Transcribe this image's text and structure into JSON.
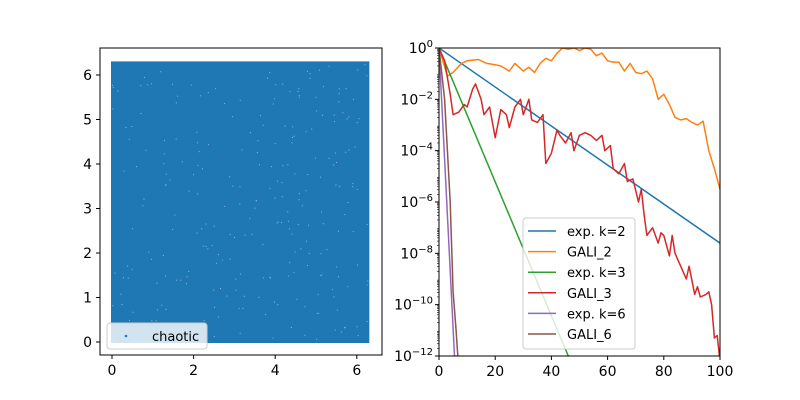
{
  "chart_data": [
    {
      "type": "scatter",
      "title": "",
      "xlabel": "",
      "ylabel": "",
      "xlim": [
        -0.31,
        6.6
      ],
      "ylim": [
        -0.31,
        6.6
      ],
      "xticks": [
        "0",
        "2",
        "4",
        "6"
      ],
      "yticks": [
        "0",
        "1",
        "2",
        "3",
        "4",
        "5",
        "6"
      ],
      "series": [
        {
          "name": "chaotic",
          "color": "#1f77b4",
          "x_range": [
            0,
            6.283
          ],
          "y_range": [
            0,
            6.283
          ],
          "note_density": "dense uniform fill"
        }
      ],
      "legend_position": "lower left",
      "grid": false
    },
    {
      "type": "line",
      "title": "",
      "xlabel": "",
      "ylabel": "",
      "xlim": [
        0,
        100
      ],
      "ylim": [
        1e-12,
        1
      ],
      "yscale": "log",
      "xticks": [
        "0",
        "20",
        "40",
        "60",
        "80",
        "100"
      ],
      "yticks": [
        "10^0",
        "10^-2",
        "10^-4",
        "10^-6",
        "10^-8",
        "10^-10",
        "10^-12"
      ],
      "legend_position": "lower center",
      "grid": false,
      "series": [
        {
          "name": "exp. k=2",
          "color": "#1f77b4",
          "log10_points": [
            [
              0,
              0
            ],
            [
              100,
              -7.6
            ]
          ]
        },
        {
          "name": "GALI_2",
          "color": "#ff7f0e",
          "log10_points": [
            [
              0,
              0
            ],
            [
              3,
              -1.1
            ],
            [
              5,
              -0.95
            ],
            [
              8,
              -0.6
            ],
            [
              10,
              -0.5
            ],
            [
              14,
              -0.45
            ],
            [
              17,
              -0.6
            ],
            [
              20,
              -0.65
            ],
            [
              22,
              -0.7
            ],
            [
              25,
              -0.9
            ],
            [
              27,
              -0.6
            ],
            [
              30,
              -0.9
            ],
            [
              32,
              -0.75
            ],
            [
              34,
              -0.95
            ],
            [
              36,
              -0.6
            ],
            [
              38,
              -0.4
            ],
            [
              40,
              -0.5
            ],
            [
              42,
              -0.2
            ],
            [
              44,
              0
            ],
            [
              46,
              -0.05
            ],
            [
              48,
              0
            ],
            [
              50,
              -0.1
            ],
            [
              52,
              0
            ],
            [
              54,
              -0.05
            ],
            [
              56,
              -0.3
            ],
            [
              58,
              -0.2
            ],
            [
              60,
              -0.5
            ],
            [
              62,
              -0.55
            ],
            [
              64,
              -0.55
            ],
            [
              66,
              -0.9
            ],
            [
              68,
              -0.6
            ],
            [
              70,
              -0.95
            ],
            [
              72,
              -1.0
            ],
            [
              74,
              -0.9
            ],
            [
              76,
              -1.2
            ],
            [
              78,
              -2.0
            ],
            [
              80,
              -1.8
            ],
            [
              82,
              -2.2
            ],
            [
              84,
              -2.7
            ],
            [
              86,
              -2.8
            ],
            [
              88,
              -2.75
            ],
            [
              90,
              -2.9
            ],
            [
              92,
              -3.0
            ],
            [
              94,
              -2.85
            ],
            [
              96,
              -4.0
            ],
            [
              98,
              -4.7
            ],
            [
              100,
              -5.5
            ]
          ]
        },
        {
          "name": "exp. k=3",
          "color": "#2ca02c",
          "log10_points": [
            [
              0,
              0
            ],
            [
              46,
              -12
            ]
          ]
        },
        {
          "name": "GALI_3",
          "color": "#d62728",
          "log10_points": [
            [
              0,
              0
            ],
            [
              2,
              -0.5
            ],
            [
              4,
              -1.8
            ],
            [
              5,
              -2.6
            ],
            [
              7,
              -2.5
            ],
            [
              9,
              -2.2
            ],
            [
              10,
              -2.3
            ],
            [
              12,
              -1.6
            ],
            [
              13,
              -1.4
            ],
            [
              15,
              -2.0
            ],
            [
              16,
              -2.6
            ],
            [
              18,
              -2.3
            ],
            [
              20,
              -3.5
            ],
            [
              22,
              -2.4
            ],
            [
              24,
              -2.6
            ],
            [
              25,
              -3.1
            ],
            [
              27,
              -2.3
            ],
            [
              29,
              -2.0
            ],
            [
              30,
              -2.6
            ],
            [
              32,
              -2.0
            ],
            [
              33,
              -2.8
            ],
            [
              35,
              -2.9
            ],
            [
              37,
              -2.6
            ],
            [
              38,
              -4.5
            ],
            [
              40,
              -4.1
            ],
            [
              42,
              -3.2
            ],
            [
              43,
              -3.4
            ],
            [
              45,
              -3.7
            ],
            [
              47,
              -3.3
            ],
            [
              48,
              -4.0
            ],
            [
              50,
              -3.4
            ],
            [
              52,
              -3.3
            ],
            [
              54,
              -3.4
            ],
            [
              56,
              -3.6
            ],
            [
              58,
              -3.4
            ],
            [
              59,
              -4.0
            ],
            [
              61,
              -3.8
            ],
            [
              62,
              -4.7
            ],
            [
              64,
              -4.9
            ],
            [
              66,
              -4.5
            ],
            [
              67,
              -5.2
            ],
            [
              69,
              -5.1
            ],
            [
              71,
              -6.0
            ],
            [
              72,
              -5.5
            ],
            [
              73,
              -6.5
            ],
            [
              74,
              -7.3
            ],
            [
              76,
              -7.0
            ],
            [
              78,
              -7.6
            ],
            [
              79,
              -7.2
            ],
            [
              80,
              -7.3
            ],
            [
              82,
              -8.1
            ],
            [
              83,
              -7.3
            ],
            [
              84,
              -8.0
            ],
            [
              86,
              -8.5
            ],
            [
              88,
              -9.0
            ],
            [
              89,
              -8.5
            ],
            [
              91,
              -9.6
            ],
            [
              92,
              -9.3
            ],
            [
              93,
              -9.7
            ],
            [
              95,
              -9.6
            ],
            [
              96,
              -9.5
            ],
            [
              97,
              -10.0
            ],
            [
              98,
              -11.3
            ],
            [
              99,
              -11.2
            ],
            [
              100,
              -12.2
            ]
          ]
        },
        {
          "name": "exp. k=6",
          "color": "#9467bd",
          "log10_points": [
            [
              0,
              0
            ],
            [
              5.5,
              -12
            ]
          ]
        },
        {
          "name": "GALI_6",
          "color": "#8c564b",
          "log10_points": [
            [
              0,
              0
            ],
            [
              2,
              -2
            ],
            [
              4,
              -6
            ],
            [
              5,
              -9.5
            ],
            [
              6,
              -10.9
            ],
            [
              7,
              -12.5
            ]
          ]
        }
      ]
    }
  ]
}
